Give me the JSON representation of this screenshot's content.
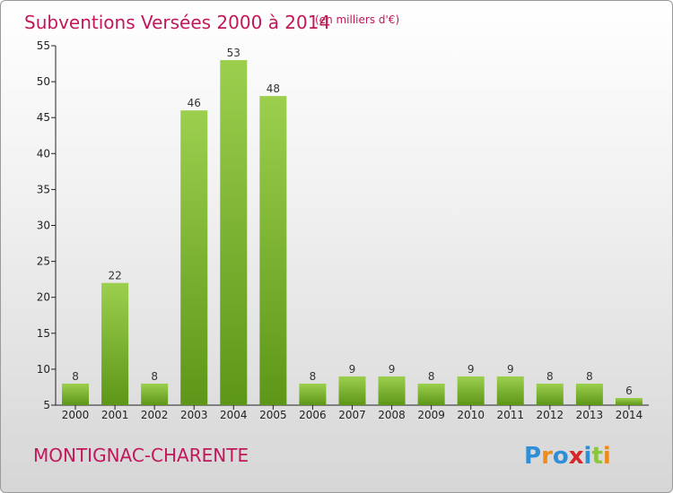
{
  "chart_data": {
    "type": "bar",
    "title": "Subventions Versées 2000 à 2014",
    "subtitle": "(en milliers d'€)",
    "categories": [
      "2000",
      "2001",
      "2002",
      "2003",
      "2004",
      "2005",
      "2006",
      "2007",
      "2008",
      "2009",
      "2010",
      "2011",
      "2012",
      "2013",
      "2014"
    ],
    "values": [
      8,
      22,
      8,
      46,
      53,
      48,
      8,
      9,
      9,
      8,
      9,
      9,
      8,
      8,
      6
    ],
    "ylim": [
      5,
      55
    ],
    "yticks": [
      5,
      10,
      15,
      20,
      25,
      30,
      35,
      40,
      45,
      50,
      55
    ],
    "grid": false,
    "bar_color_top": "#9ccf4e",
    "bar_color_bottom": "#5d9618"
  },
  "footer": {
    "commune": "MONTIGNAC-CHARENTE",
    "logo_text": "Proxiti",
    "logo_colors": [
      "#2e8fd6",
      "#f08a1c",
      "#2e8fd6",
      "#d6262a",
      "#2e8fd6",
      "#8cc63f",
      "#f08a1c"
    ]
  }
}
